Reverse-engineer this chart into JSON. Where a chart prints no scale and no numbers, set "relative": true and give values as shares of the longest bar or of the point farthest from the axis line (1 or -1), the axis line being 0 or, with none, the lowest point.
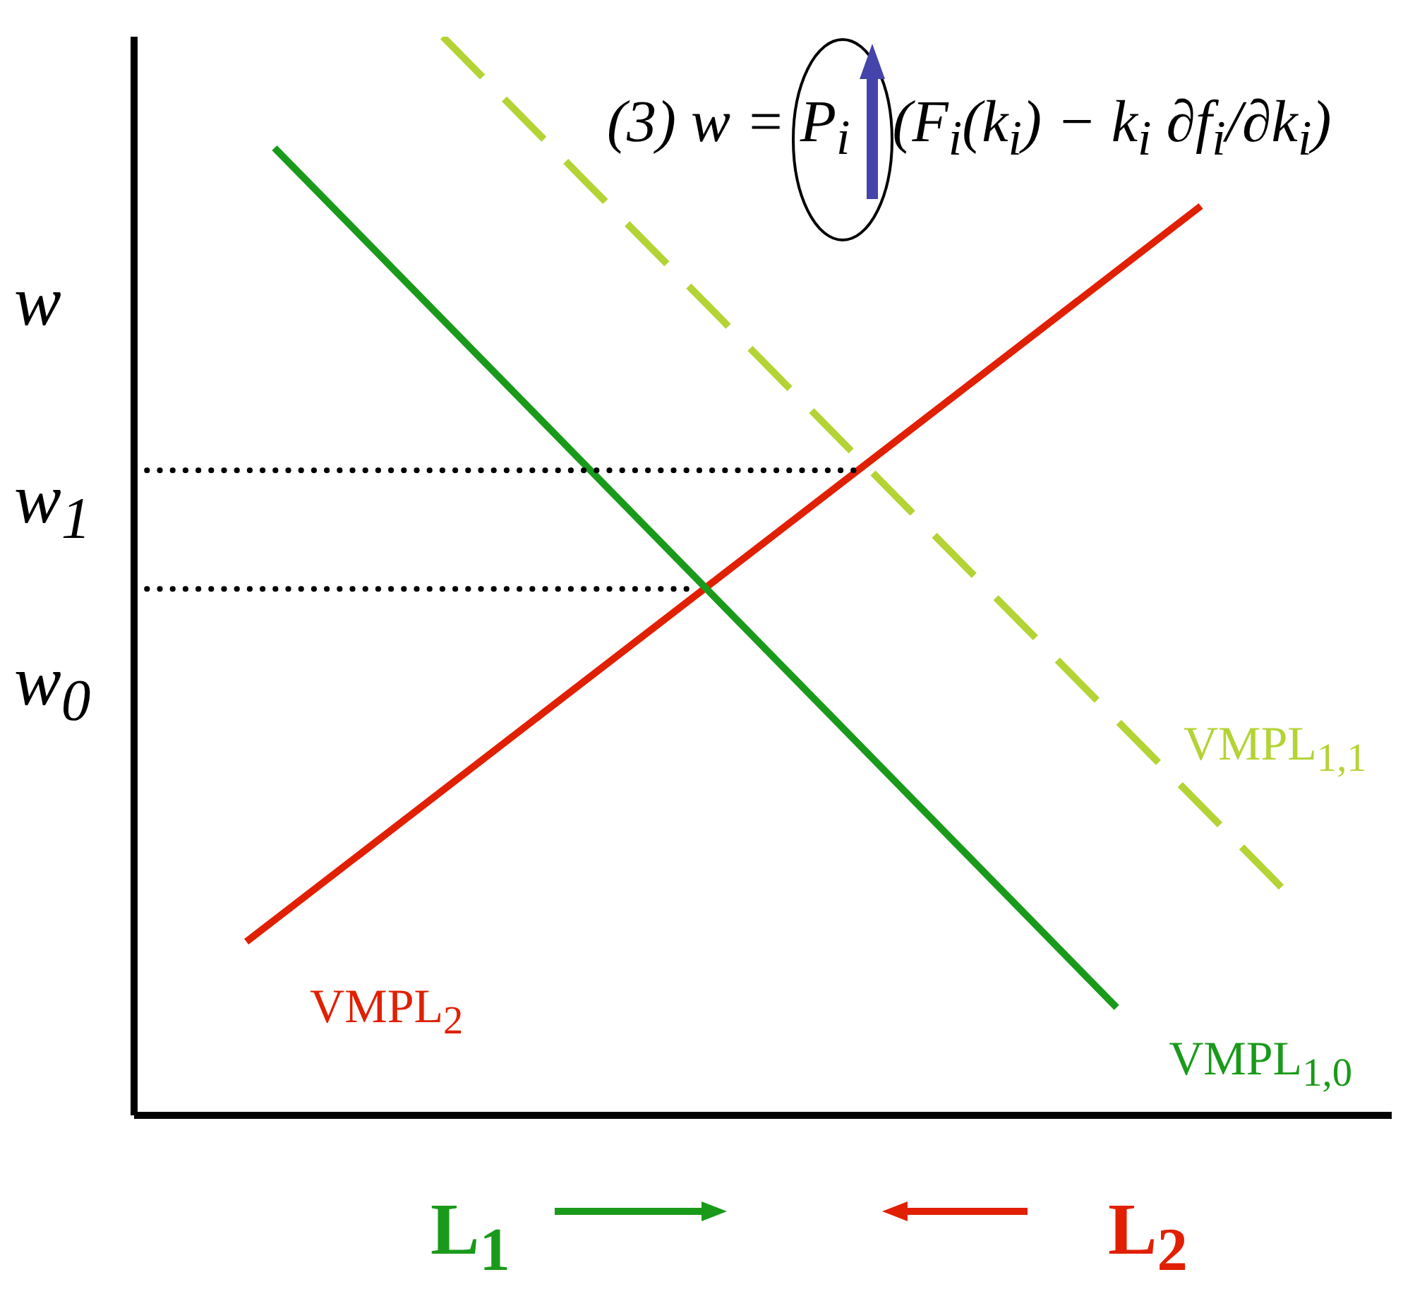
{
  "chart_data": {
    "type": "line",
    "relative": true,
    "title": "(3) w = P$_{i}$(F$_{i}$(k$_{i}$) − k$_{i}$ ∂f$_{i}$/∂k$_{i}$)",
    "ylabel": "w",
    "annotations": [
      "w$_{1}$",
      "w$_{0}$",
      "L$_{1}$",
      "L$_{2}$"
    ],
    "categories": [
      null,
      null,
      null,
      null,
      null,
      null,
      null,
      null,
      null,
      null,
      null,
      null,
      null,
      null,
      null,
      null,
      null,
      null,
      null,
      null,
      null,
      null,
      null,
      null,
      null,
      null,
      null,
      null,
      null,
      null,
      null,
      null,
      null,
      null,
      null,
      null,
      null,
      null,
      null,
      null,
      null,
      null,
      null,
      null,
      null,
      null
    ],
    "series": [
      {
        "name": "VMPL$_{2}$",
        "color": "#e02000",
        "line_style": "solid",
        "values": [
          null,
          null,
          null,
          null,
          0.161,
          null,
          null,
          null,
          null,
          null,
          null,
          null,
          null,
          null,
          null,
          null,
          null,
          null,
          null,
          null,
          null,
          null,
          null,
          null,
          null,
          null,
          null,
          null,
          null,
          null,
          null,
          null,
          null,
          null,
          null,
          null,
          null,
          null,
          0.843,
          null,
          null,
          null,
          null,
          null,
          null,
          null
        ]
      },
      {
        "name": "VMPL$_{1,0}$",
        "color": "#1a9a1a",
        "line_style": "solid",
        "values": [
          null,
          null,
          null,
          null,
          null,
          0.897,
          null,
          null,
          null,
          null,
          null,
          null,
          null,
          null,
          null,
          null,
          null,
          null,
          null,
          null,
          null,
          null,
          null,
          null,
          null,
          null,
          null,
          null,
          null,
          null,
          null,
          null,
          null,
          null,
          null,
          0.1,
          null,
          null,
          null,
          null,
          null,
          null,
          null,
          null,
          null,
          null
        ]
      },
      {
        "name": "VMPL$_{1,1}$",
        "color": "#b4d334",
        "line_style": "dashed",
        "values": [
          null,
          null,
          null,
          null,
          null,
          null,
          null,
          null,
          null,
          null,
          null,
          1.0,
          null,
          null,
          null,
          null,
          null,
          null,
          null,
          null,
          null,
          null,
          null,
          null,
          null,
          null,
          null,
          null,
          null,
          null,
          null,
          null,
          null,
          null,
          null,
          null,
          null,
          null,
          null,
          null,
          null,
          0.208,
          null,
          null,
          null,
          null
        ]
      },
      {
        "color": "#000000",
        "line_style": "dotted",
        "values": [
          0.598,
          null,
          null,
          null,
          null,
          null,
          null,
          null,
          null,
          null,
          null,
          null,
          null,
          null,
          null,
          null,
          null,
          null,
          null,
          null,
          null,
          null,
          null,
          null,
          null,
          null,
          0.598,
          null,
          null,
          null,
          null,
          null,
          null,
          null,
          null,
          null,
          null,
          null,
          null,
          null,
          null,
          null,
          null,
          null,
          null,
          null
        ]
      },
      {
        "color": "#000000",
        "line_style": "dotted",
        "values": [
          0.488,
          null,
          null,
          null,
          null,
          null,
          null,
          null,
          null,
          null,
          null,
          null,
          null,
          null,
          null,
          null,
          null,
          null,
          null,
          null,
          0.488,
          null,
          null,
          null,
          null,
          null,
          null,
          null,
          null,
          null,
          null,
          null,
          null,
          null,
          null,
          null,
          null,
          null,
          null,
          null,
          null,
          null,
          null,
          null,
          null,
          null
        ]
      }
    ]
  }
}
